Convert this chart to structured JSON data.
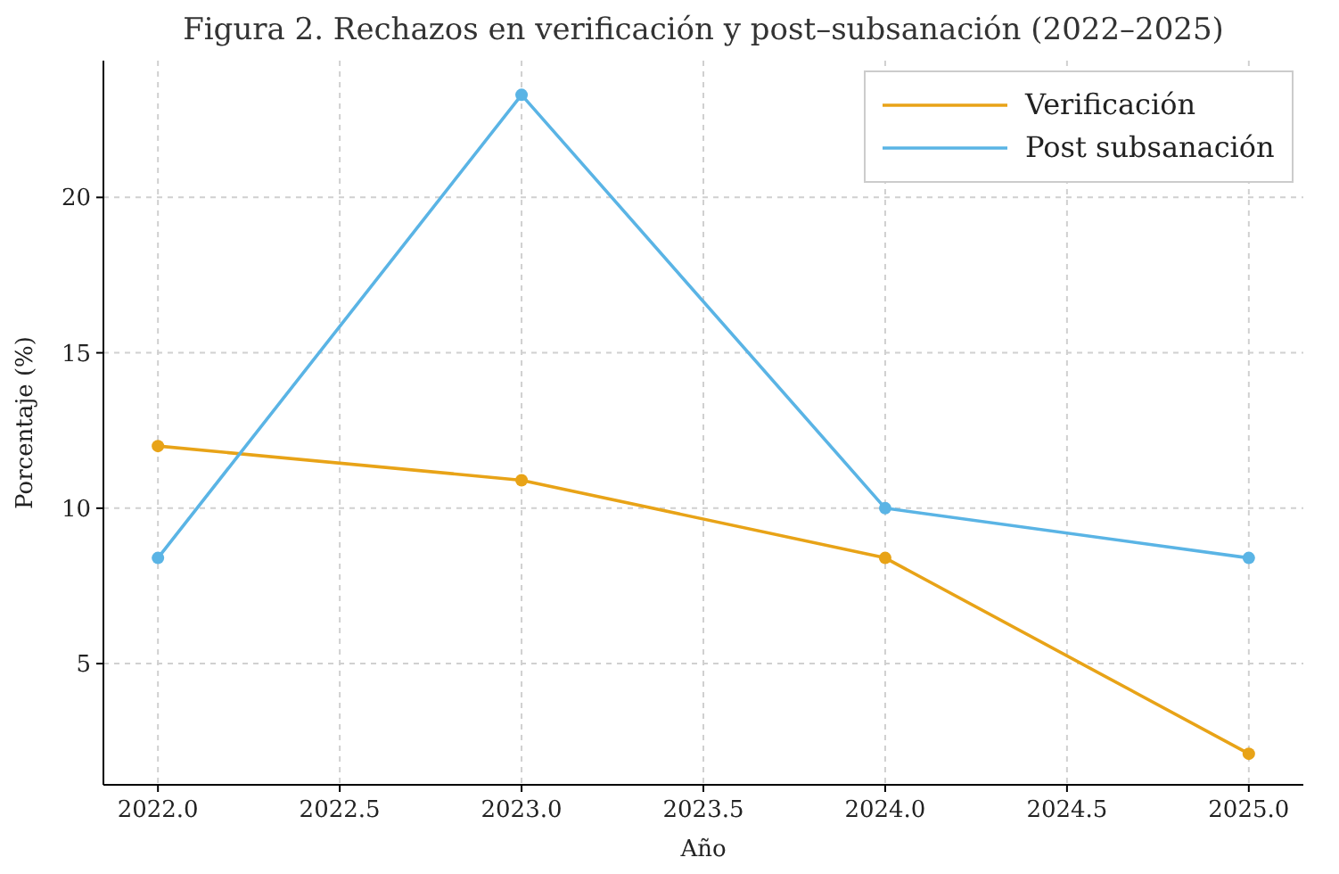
{
  "chart_data": {
    "type": "line",
    "title": "Figura 2. Rechazos en verificación y post–subsanación (2022–2025)",
    "xlabel": "Año",
    "ylabel": "Porcentaje (%)",
    "x": [
      2022,
      2023,
      2024,
      2025
    ],
    "series": [
      {
        "name": "Verificación",
        "color": "#e8a317",
        "values": [
          12.0,
          10.9,
          8.4,
          2.1
        ]
      },
      {
        "name": "Post subsanación",
        "color": "#5ab4e5",
        "values": [
          8.4,
          23.3,
          10.0,
          8.4
        ]
      }
    ],
    "xlim": [
      2021.85,
      2025.15
    ],
    "xticks": [
      {
        "value": 2022,
        "label": "2022.0"
      },
      {
        "value": 2022.5,
        "label": "2022.5"
      },
      {
        "value": 2023,
        "label": "2023.0"
      },
      {
        "value": 2023.5,
        "label": "2023.5"
      },
      {
        "value": 2024,
        "label": "2024.0"
      },
      {
        "value": 2024.5,
        "label": "2024.5"
      },
      {
        "value": 2025,
        "label": "2025.0"
      }
    ],
    "ylim": [
      1.1,
      24.4
    ],
    "yticks": [
      5,
      10,
      15,
      20
    ],
    "grid": true,
    "legend": "top right",
    "marker": "circle",
    "line_style": "solid"
  }
}
